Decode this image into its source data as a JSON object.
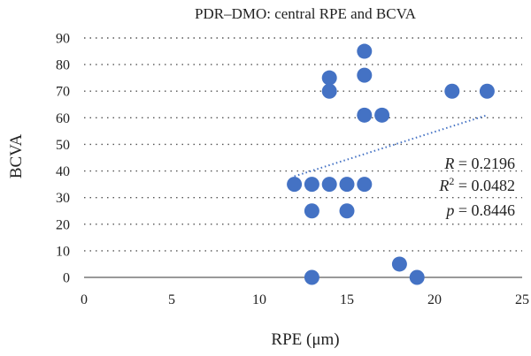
{
  "chart_data": {
    "type": "scatter",
    "title": "PDR–DMO: central RPE and BCVA",
    "xlabel": "RPE (μm)",
    "ylabel": "BCVA",
    "xlim": [
      0,
      25
    ],
    "ylim": [
      0,
      90
    ],
    "xticks": [
      0,
      5,
      10,
      15,
      20,
      25
    ],
    "yticks": [
      0,
      10,
      20,
      30,
      40,
      50,
      60,
      70,
      80,
      90
    ],
    "grid": "horizontal dotted",
    "marker_color": "#4472C4",
    "trendline_color": "#4472C4",
    "points": [
      {
        "x": 12,
        "y": 35
      },
      {
        "x": 13,
        "y": 35
      },
      {
        "x": 13,
        "y": 25
      },
      {
        "x": 13,
        "y": 0
      },
      {
        "x": 14,
        "y": 75
      },
      {
        "x": 14,
        "y": 70
      },
      {
        "x": 14,
        "y": 35
      },
      {
        "x": 15,
        "y": 35
      },
      {
        "x": 15,
        "y": 25
      },
      {
        "x": 16,
        "y": 85
      },
      {
        "x": 16,
        "y": 76
      },
      {
        "x": 16,
        "y": 61
      },
      {
        "x": 16,
        "y": 35
      },
      {
        "x": 17,
        "y": 61
      },
      {
        "x": 18,
        "y": 5
      },
      {
        "x": 19,
        "y": 0
      },
      {
        "x": 21,
        "y": 70
      },
      {
        "x": 23,
        "y": 70
      }
    ],
    "trendline": {
      "x": [
        12,
        23
      ],
      "y": [
        38,
        61
      ]
    },
    "annotations": {
      "r": {
        "symbol": "R",
        "text": " = 0.2196"
      },
      "r2": {
        "symbol": "R",
        "sup": "2",
        "text": " = 0.0482"
      },
      "p": {
        "symbol": "p",
        "text": " = 0.8446"
      }
    }
  }
}
